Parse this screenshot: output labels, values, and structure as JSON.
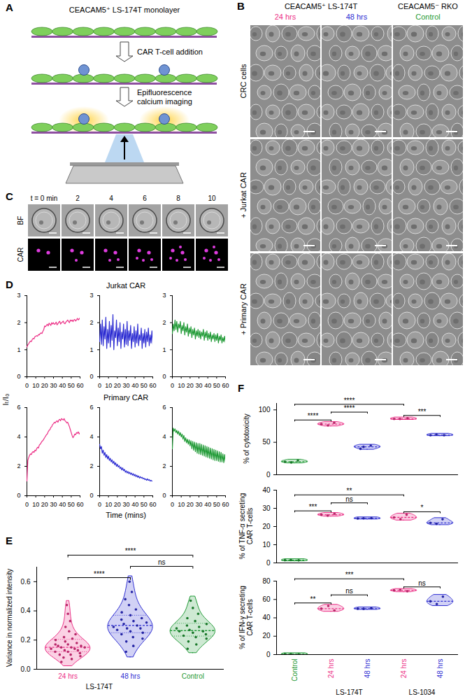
{
  "figure": {
    "A": {
      "panel": "A",
      "title": "CEACAM5⁺ LS-174T monolayer",
      "steps": [
        [
          "CAR T-cell addition"
        ],
        [
          "Epifluorescence",
          "calcium imaging"
        ]
      ]
    },
    "B": {
      "panel": "B",
      "column_groups": [
        {
          "title": "CEACAM5⁺ LS-174T",
          "columns": [
            {
              "title": "24 hrs",
              "color": "#ec2f86"
            },
            {
              "title": "48 hrs",
              "color": "#2d2dd2"
            }
          ]
        },
        {
          "title": "CEACAM5⁻ RKO",
          "columns": [
            {
              "title": "Control",
              "color": "#1f9a35"
            }
          ]
        }
      ],
      "rows": [
        "CRC cells",
        "+ Jurkat CAR",
        "+ Primary CAR"
      ]
    },
    "C": {
      "panel": "C",
      "columns": [
        "t = 0 min",
        "2",
        "4",
        "6",
        "8",
        "10"
      ],
      "rows": [
        "BF",
        "CAR"
      ]
    }
  },
  "chart_data": [
    {
      "panel": "D",
      "type": "line",
      "x_label": "Time (mins)",
      "y_label": "Iₜ/I₀",
      "x": [
        0,
        1,
        2,
        3,
        4,
        5,
        6,
        7,
        8,
        9,
        10,
        11,
        12,
        13,
        14,
        15,
        16,
        17,
        18,
        19,
        20,
        21,
        22,
        23,
        24,
        25,
        26,
        27,
        28,
        29,
        30,
        31,
        32,
        33,
        34,
        35,
        36,
        37,
        38,
        39,
        40,
        41,
        42,
        43,
        44,
        45,
        46,
        47,
        48,
        49,
        50,
        51,
        52,
        53,
        54,
        55,
        56,
        57,
        58,
        59,
        60
      ],
      "xlim": [
        0,
        60
      ],
      "xticks": [
        0,
        10,
        20,
        30,
        40,
        50,
        60
      ],
      "rows": [
        {
          "title": "Jurkat CAR",
          "ylim": [
            0,
            3
          ],
          "yticks": [
            0,
            1,
            2,
            3
          ],
          "series": [
            {
              "color": "#ec2f86",
              "values": [
                1.1,
                1.18,
                1.22,
                1.28,
                1.32,
                1.3,
                1.38,
                1.42,
                1.4,
                1.48,
                1.5,
                1.52,
                1.5,
                1.56,
                1.55,
                1.6,
                1.62,
                1.6,
                1.68,
                1.74,
                1.88,
                1.85,
                1.9,
                1.94,
                1.88,
                1.98,
                1.94,
                1.9,
                2.0,
                1.95,
                2.0,
                1.94,
                1.96,
                2.02,
                1.92,
                1.96,
                2.02,
                2.05,
                1.95,
                2.0,
                2.02,
                2.06,
                1.98,
                1.96,
                2.02,
                2.06,
                2.1,
                2.04,
                2.0,
                2.1,
                2.06,
                2.1,
                2.04,
                2.1,
                2.12,
                2.06,
                2.1,
                2.16,
                2.1,
                2.14,
                2.18
              ]
            },
            {
              "color": "#2d2dd2",
              "values": [
                1.3,
                1.95,
                1.2,
                2.1,
                1.15,
                1.85,
                1.4,
                2.2,
                1.05,
                1.75,
                1.25,
                2.05,
                1.1,
                1.9,
                1.35,
                2.3,
                1.0,
                1.7,
                1.45,
                2.1,
                1.15,
                1.8,
                1.3,
                2.0,
                1.05,
                1.65,
                1.4,
                1.95,
                1.1,
                1.75,
                1.2,
                2.05,
                1.15,
                1.7,
                1.35,
                1.9,
                1.05,
                1.6,
                1.3,
                1.85,
                1.1,
                1.7,
                1.25,
                1.95,
                1.15,
                1.55,
                1.35,
                1.8,
                1.05,
                1.6,
                1.25,
                1.75,
                1.1,
                1.65,
                1.3,
                1.8,
                1.15,
                1.55,
                1.25,
                1.7,
                1.2
              ]
            },
            {
              "color": "#1f9a35",
              "values": [
                1.6,
                1.95,
                1.7,
                2.1,
                1.75,
                2.05,
                1.65,
                1.95,
                1.8,
                2.05,
                1.6,
                1.9,
                1.7,
                2.0,
                1.55,
                1.85,
                1.65,
                1.95,
                1.5,
                1.8,
                1.6,
                1.85,
                1.45,
                1.75,
                1.55,
                1.8,
                1.4,
                1.7,
                1.5,
                1.75,
                1.45,
                1.7,
                1.4,
                1.65,
                1.5,
                1.75,
                1.35,
                1.65,
                1.45,
                1.7,
                1.35,
                1.6,
                1.4,
                1.65,
                1.3,
                1.55,
                1.4,
                1.6,
                1.3,
                1.55,
                1.35,
                1.6,
                1.25,
                1.5,
                1.35,
                1.55,
                1.25,
                1.45,
                1.3,
                1.5,
                1.25
              ]
            }
          ]
        },
        {
          "title": "Primary CAR",
          "ylim": [
            0,
            6
          ],
          "yticks": [
            0,
            2,
            4,
            6
          ],
          "series": [
            {
              "color": "#ec2f86",
              "values": [
                1.0,
                2.4,
                2.6,
                2.75,
                2.85,
                2.8,
                2.95,
                3.0,
                2.95,
                3.1,
                3.05,
                3.2,
                3.3,
                3.25,
                3.45,
                3.5,
                3.6,
                3.7,
                3.75,
                3.85,
                3.95,
                4.05,
                4.15,
                4.2,
                4.35,
                4.45,
                4.5,
                4.65,
                4.7,
                4.85,
                4.9,
                5.0,
                4.95,
                5.05,
                5.1,
                5.0,
                5.15,
                5.2,
                5.1,
                5.25,
                5.2,
                5.15,
                5.25,
                5.1,
                5.05,
                4.95,
                5.0,
                4.85,
                4.7,
                4.5,
                4.3,
                4.1,
                3.95,
                4.05,
                4.2,
                4.15,
                4.3,
                4.25,
                4.35,
                4.2,
                4.3
              ]
            },
            {
              "color": "#2d2dd2",
              "values": [
                3.5,
                3.2,
                3.35,
                2.9,
                3.1,
                2.75,
                2.95,
                2.6,
                2.8,
                2.5,
                2.7,
                2.4,
                2.55,
                2.3,
                2.45,
                2.2,
                2.35,
                2.1,
                2.25,
                2.0,
                2.15,
                1.95,
                2.05,
                1.85,
                1.95,
                1.75,
                1.9,
                1.7,
                1.8,
                1.6,
                1.7,
                1.55,
                1.65,
                1.5,
                1.6,
                1.45,
                1.55,
                1.4,
                1.5,
                1.35,
                1.45,
                1.3,
                1.4,
                1.25,
                1.35,
                1.2,
                1.3,
                1.2,
                1.25,
                1.15,
                1.2,
                1.1,
                1.15,
                1.05,
                1.15,
                1.05,
                1.1,
                1.0,
                1.05,
                1.0,
                1.0
              ]
            },
            {
              "color": "#1f9a35",
              "values": [
                3.2,
                4.6,
                4.4,
                4.55,
                4.3,
                4.45,
                4.2,
                4.4,
                4.1,
                4.3,
                4.0,
                4.2,
                3.85,
                4.1,
                3.7,
                3.95,
                3.6,
                3.85,
                3.5,
                3.8,
                3.4,
                3.75,
                3.2,
                3.7,
                3.1,
                3.65,
                3.0,
                3.6,
                2.9,
                3.55,
                2.85,
                3.55,
                2.8,
                3.5,
                2.75,
                3.45,
                2.7,
                3.4,
                2.65,
                3.35,
                2.6,
                3.3,
                2.55,
                3.25,
                2.5,
                3.2,
                2.45,
                3.15,
                2.4,
                3.1,
                2.4,
                3.05,
                2.35,
                3.0,
                2.3,
                2.95,
                2.3,
                2.85,
                2.25,
                2.8,
                2.3
              ]
            }
          ]
        }
      ]
    },
    {
      "panel": "E",
      "type": "violin",
      "y_label": "Variance in normalized intensity",
      "categories": [
        "24 hrs",
        "48 hrs",
        "Control"
      ],
      "category_groups": [
        "LS-174T",
        "LS-174T",
        null
      ],
      "colors": [
        "#ec2f86",
        "#2d2dd2",
        "#1f9a35"
      ],
      "ylim": [
        0,
        0.7
      ],
      "yticks": [
        {
          "value": 0,
          "label": "0.0"
        },
        0.2,
        0.4,
        0.6
      ],
      "values": [
        [
          0.05,
          0.07,
          0.08,
          0.09,
          0.1,
          0.1,
          0.11,
          0.12,
          0.12,
          0.13,
          0.13,
          0.14,
          0.14,
          0.15,
          0.15,
          0.15,
          0.16,
          0.16,
          0.17,
          0.17,
          0.18,
          0.19,
          0.2,
          0.21,
          0.22,
          0.24,
          0.26,
          0.29,
          0.33,
          0.38,
          0.44
        ],
        [
          0.12,
          0.16,
          0.19,
          0.21,
          0.22,
          0.24,
          0.25,
          0.26,
          0.27,
          0.28,
          0.28,
          0.29,
          0.3,
          0.31,
          0.32,
          0.33,
          0.34,
          0.35,
          0.37,
          0.39,
          0.41,
          0.44,
          0.48,
          0.53,
          0.6
        ],
        [
          0.14,
          0.17,
          0.19,
          0.21,
          0.22,
          0.23,
          0.24,
          0.25,
          0.26,
          0.26,
          0.27,
          0.28,
          0.29,
          0.3,
          0.31,
          0.33,
          0.35,
          0.38,
          0.42,
          0.47
        ]
      ],
      "significance": [
        {
          "pair": [
            0,
            1
          ],
          "label": "****"
        },
        {
          "pair": [
            0,
            2
          ],
          "label": "****"
        },
        {
          "pair": [
            1,
            2
          ],
          "label": "ns"
        }
      ]
    },
    {
      "panel": "F",
      "type": "violin",
      "categories": [
        "Control",
        "24 hrs",
        "48 hrs",
        "24 hrs",
        "48 hrs"
      ],
      "category_groups": [
        null,
        "LS-174T",
        "LS-174T",
        "LS-1034",
        "LS-1034"
      ],
      "colors": [
        "#1f9a35",
        "#ec2f86",
        "#2d2dd2",
        "#ec2f86",
        "#2d2dd2"
      ],
      "charts": [
        {
          "y_label": "% of cytotoxicity",
          "ylim": [
            0,
            110
          ],
          "yticks": [
            0,
            50,
            100
          ],
          "values": [
            [
              20,
              22,
              19
            ],
            [
              78,
              80,
              76
            ],
            [
              40,
              45,
              43
            ],
            [
              86,
              87,
              86
            ],
            [
              61,
              61,
              62
            ]
          ],
          "significance": [
            {
              "pair": [
                0,
                1
              ],
              "label": "****"
            },
            {
              "pair": [
                1,
                2
              ],
              "label": "****"
            },
            {
              "pair": [
                0,
                3
              ],
              "label": "****"
            },
            {
              "pair": [
                3,
                4
              ],
              "label": "***"
            }
          ]
        },
        {
          "y_label": "% of TNF-α secreting CAR T-cells",
          "ylim": [
            0,
            40
          ],
          "yticks": [
            0,
            10,
            20,
            30,
            40
          ],
          "values": [
            [
              1.5,
              1.4,
              1.6
            ],
            [
              26.5,
              27,
              26
            ],
            [
              24.4,
              24.6,
              24.5
            ],
            [
              25,
              26.5,
              24
            ],
            [
              22,
              24,
              21.5
            ]
          ],
          "significance": [
            {
              "pair": [
                0,
                1
              ],
              "label": "***"
            },
            {
              "pair": [
                1,
                2
              ],
              "label": "ns"
            },
            {
              "pair": [
                0,
                3
              ],
              "label": "**"
            },
            {
              "pair": [
                3,
                4
              ],
              "label": "*"
            }
          ]
        },
        {
          "y_label": "% of IFN-γ secreting CAR T-cells",
          "ylim": [
            0,
            80
          ],
          "yticks": [
            0,
            20,
            40,
            60,
            80
          ],
          "values": [
            [
              0.5,
              0.4,
              0.6
            ],
            [
              50,
              48,
              53
            ],
            [
              50,
              50.5,
              49.8
            ],
            [
              70,
              69,
              70.5
            ],
            [
              58,
              63,
              55
            ]
          ],
          "significance": [
            {
              "pair": [
                0,
                1
              ],
              "label": "**"
            },
            {
              "pair": [
                1,
                2
              ],
              "label": "ns"
            },
            {
              "pair": [
                0,
                3
              ],
              "label": "***"
            },
            {
              "pair": [
                3,
                4
              ],
              "label": "ns"
            }
          ]
        }
      ]
    }
  ]
}
